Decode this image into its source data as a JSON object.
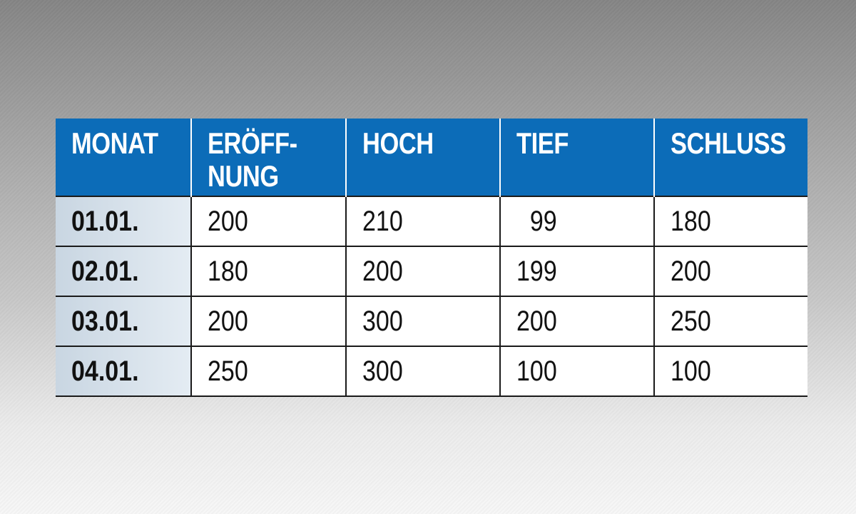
{
  "table": {
    "headers": [
      "MONAT",
      "ERÖFF-\nNUNG",
      "HOCH",
      "TIEF",
      "SCHLUSS"
    ],
    "rows": [
      [
        "01.01.",
        "200",
        "210",
        "  99",
        "180"
      ],
      [
        "02.01.",
        "180",
        "200",
        "199",
        "200"
      ],
      [
        "03.01.",
        "200",
        "300",
        "200",
        "250"
      ],
      [
        "04.01.",
        "250",
        "300",
        "100",
        "100"
      ]
    ]
  },
  "colors": {
    "header_bg": "#0c6cb8",
    "header_text": "#ffffff",
    "first_col_bg": "#dbe4ec",
    "grid_lines": "#1a1a1a"
  }
}
